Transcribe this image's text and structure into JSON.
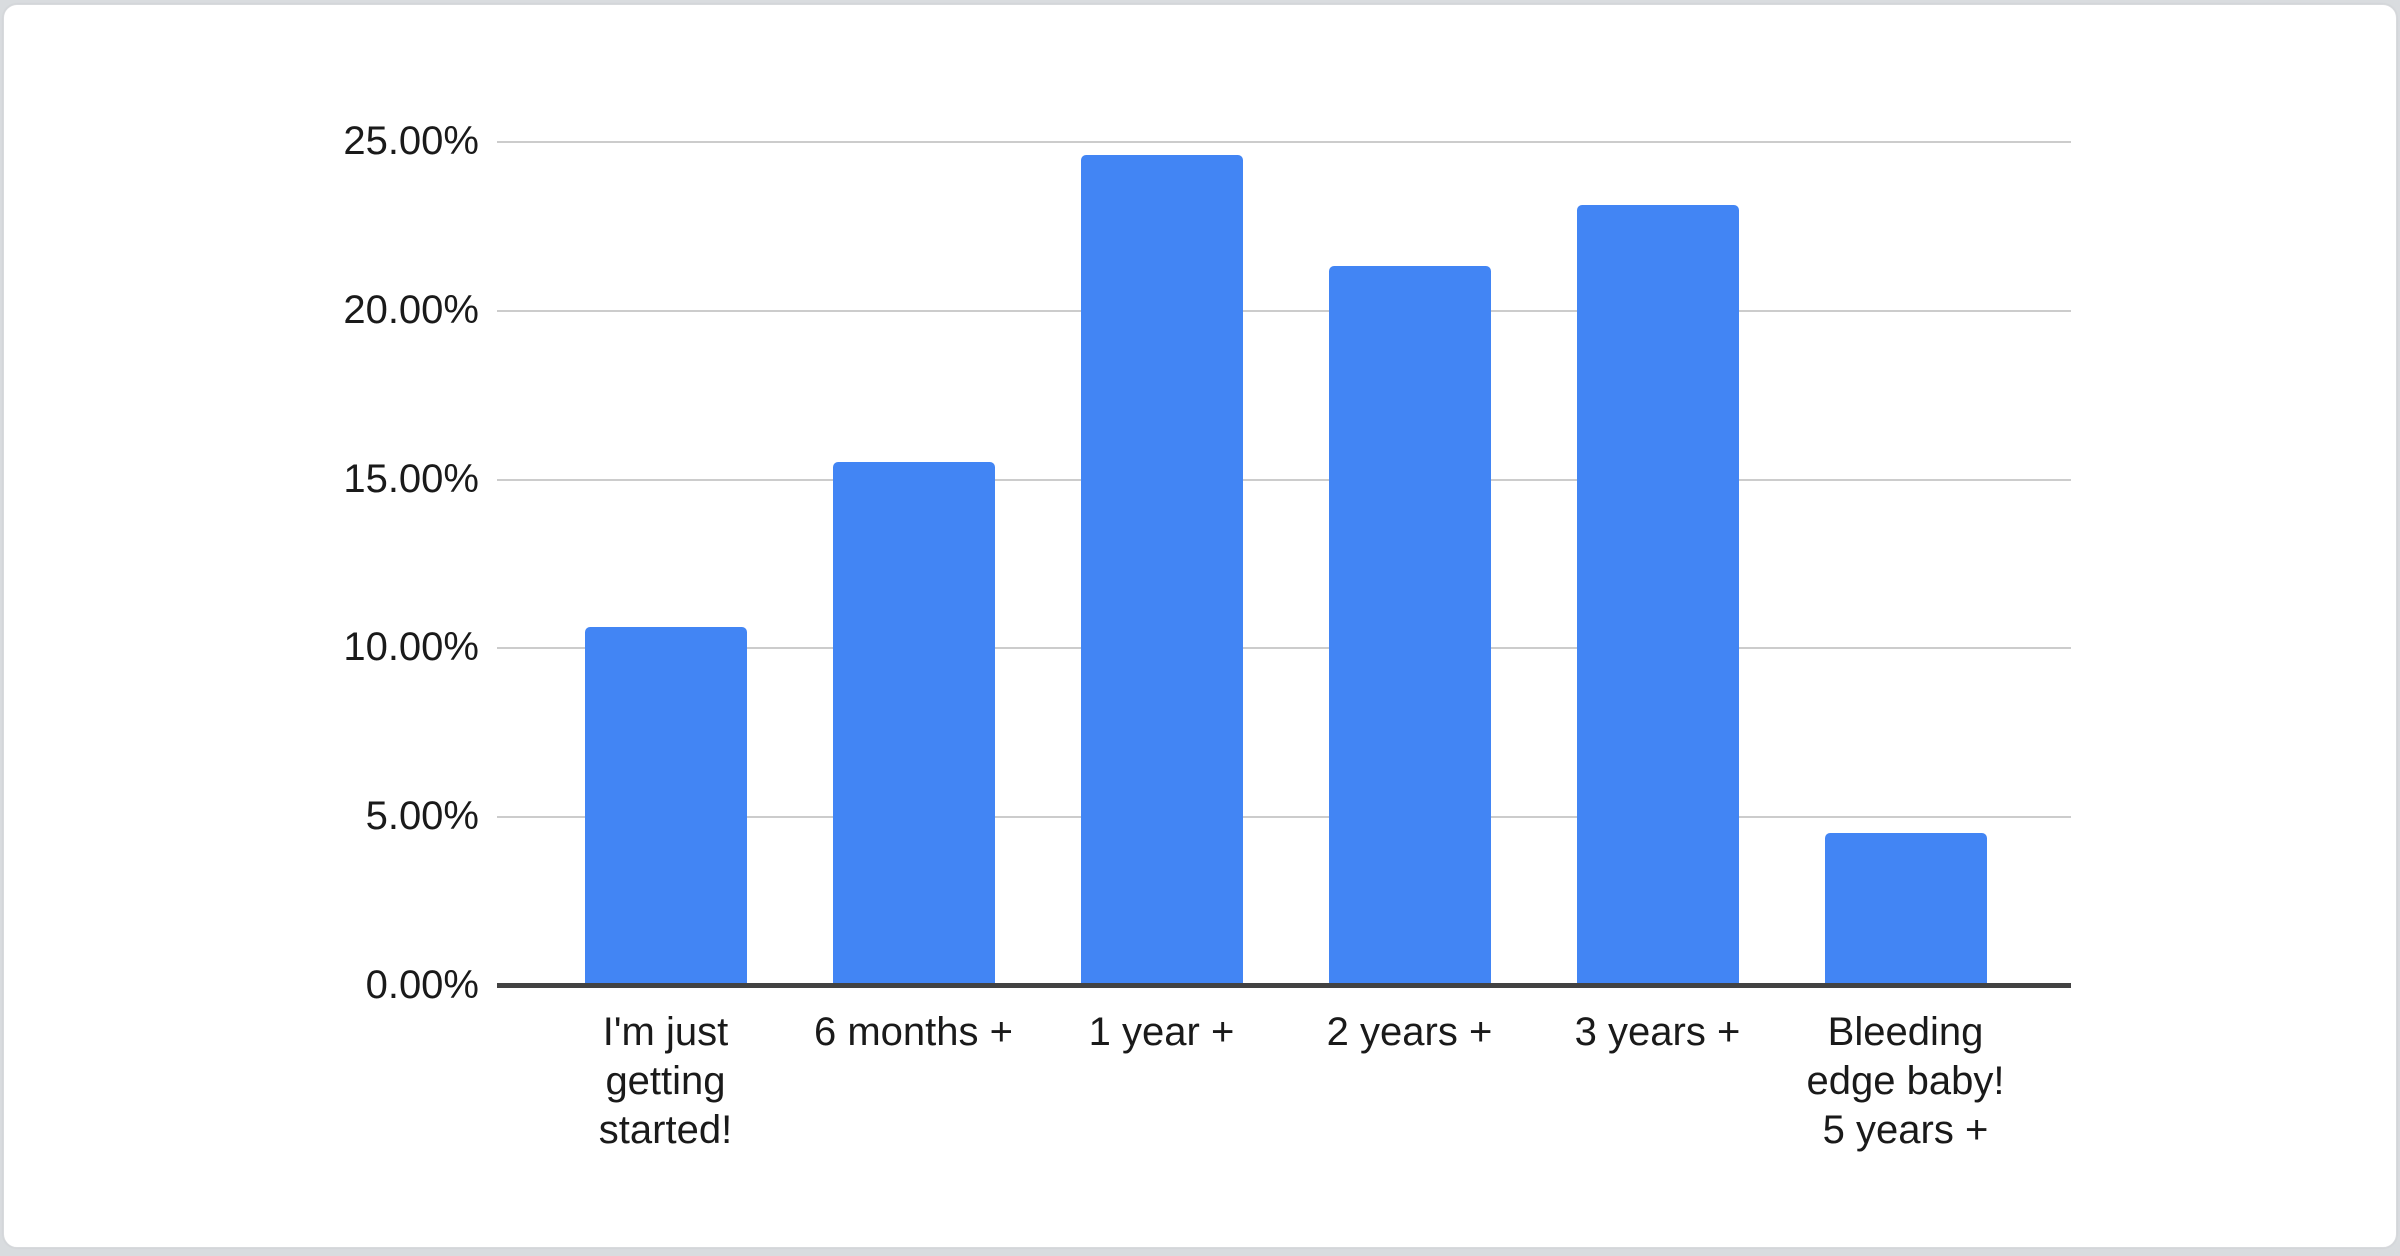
{
  "background_color": "#d9dcdf",
  "card": {
    "background": "#ffffff",
    "border_color": "#d8dadd"
  },
  "chart_data": {
    "type": "bar",
    "title": "",
    "xlabel": "",
    "ylabel": "",
    "categories": [
      "I'm just getting started!",
      "6 months +",
      "1 year +",
      "2 years +",
      "3 years +",
      "Bleeding edge baby! 5 years +"
    ],
    "category_label_lines": [
      [
        "I'm just",
        "getting",
        "started!"
      ],
      [
        "6 months +"
      ],
      [
        "1 year +"
      ],
      [
        "2 years +"
      ],
      [
        "3 years +"
      ],
      [
        "Bleeding",
        "edge baby!",
        "5 years +"
      ]
    ],
    "values": [
      10.6,
      15.5,
      24.6,
      21.3,
      23.1,
      4.5
    ],
    "value_unit": "%",
    "ylim": [
      0,
      25
    ],
    "ytick_step": 5,
    "ytick_labels": [
      "0.00%",
      "5.00%",
      "10.00%",
      "15.00%",
      "20.00%",
      "25.00%"
    ],
    "grid": "horizontal",
    "legend": "none",
    "bar_color": "#4285f4",
    "gridline_color": "#cccccc",
    "axis_line_color": "#424242",
    "label_color": "#1a1a1a"
  }
}
